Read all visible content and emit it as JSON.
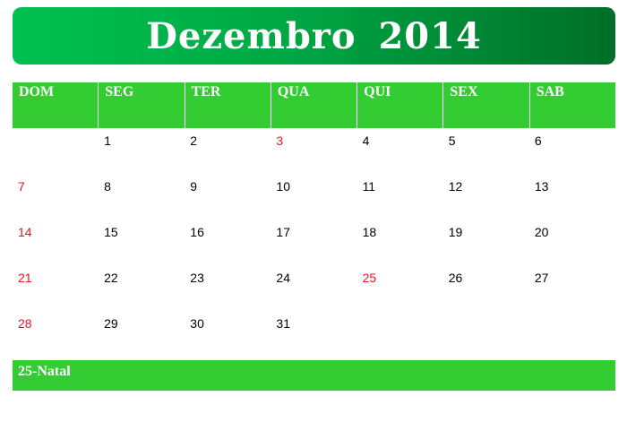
{
  "calendar": {
    "title": "Dezembro 2014",
    "weekdays": [
      "DOM",
      "SEG",
      "TER",
      "QUA",
      "QUI",
      "SEX",
      "SAB"
    ],
    "weeks": [
      [
        "",
        "1",
        "2",
        "3",
        "4",
        "5",
        "6"
      ],
      [
        "7",
        "8",
        "9",
        "10",
        "11",
        "12",
        "13"
      ],
      [
        "14",
        "15",
        "16",
        "17",
        "18",
        "19",
        "20"
      ],
      [
        "21",
        "22",
        "23",
        "24",
        "25",
        "26",
        "27"
      ],
      [
        "28",
        "29",
        "30",
        "31",
        "",
        "",
        ""
      ]
    ],
    "holidays": [
      "3",
      "25"
    ],
    "holiday_color": "#e8141e",
    "header_color": "#33cc33",
    "note": "25-Natal"
  }
}
